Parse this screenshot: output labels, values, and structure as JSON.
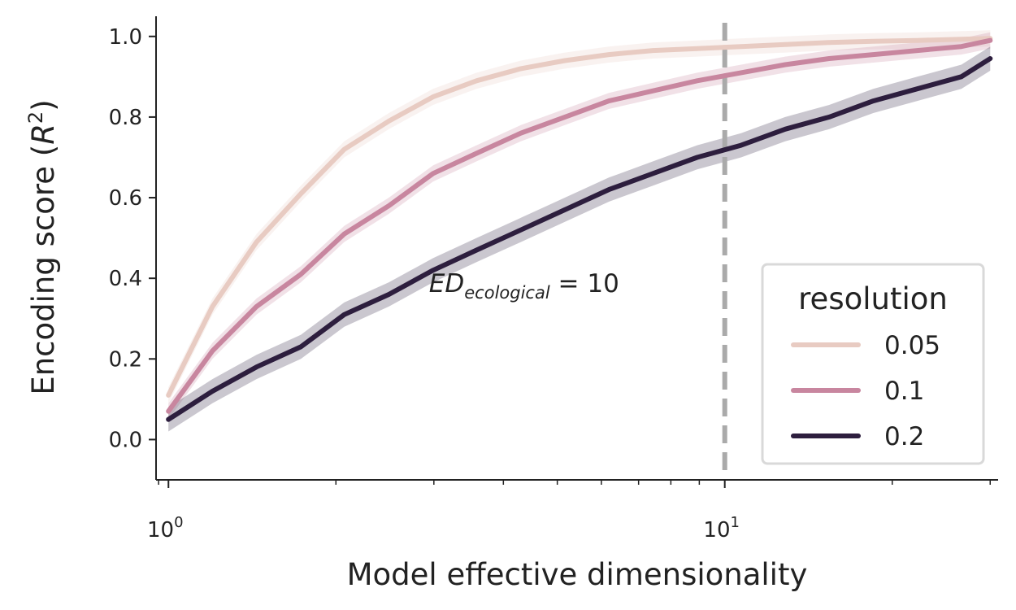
{
  "chart_data": {
    "type": "line",
    "xlabel": "Model effective dimensionality",
    "ylabel": "Encoding score (R²)",
    "ylabel_parts": {
      "main": "Encoding score (",
      "var": "R",
      "sup": "2",
      "close": ")"
    },
    "xscale": "log",
    "xlim": [
      0.95,
      31
    ],
    "ylim": [
      -0.1,
      1.05
    ],
    "x_ticks": [
      {
        "value": 1,
        "base": "10",
        "exp": "0"
      },
      {
        "value": 10,
        "base": "10",
        "exp": "1"
      }
    ],
    "y_ticks": [
      0.0,
      0.2,
      0.4,
      0.6,
      0.8,
      1.0
    ],
    "y_tick_labels": [
      "0.0",
      "0.2",
      "0.4",
      "0.6",
      "0.8",
      "1.0"
    ],
    "grid": false,
    "reference_line": {
      "x": 10,
      "style": "dashed",
      "color": "#aaaaaa"
    },
    "annotation": {
      "main": "ED",
      "sub": "ecological",
      "rest": " = 10",
      "x": 3.0,
      "y": 0.37
    },
    "legend": {
      "title": "resolution",
      "placement": "bottom-right"
    },
    "x": [
      1.0,
      1.2,
      1.44,
      1.73,
      2.07,
      2.49,
      2.99,
      3.58,
      4.3,
      5.16,
      6.19,
      7.43,
      8.92,
      10.7,
      12.84,
      15.41,
      18.49,
      22.19,
      26.63,
      30.0
    ],
    "series": [
      {
        "name": "0.05",
        "color": "#e8cbc2",
        "values": [
          0.11,
          0.33,
          0.49,
          0.61,
          0.72,
          0.79,
          0.85,
          0.89,
          0.92,
          0.94,
          0.955,
          0.965,
          0.97,
          0.975,
          0.98,
          0.985,
          0.988,
          0.99,
          0.993,
          0.995
        ],
        "band": 0.02
      },
      {
        "name": "0.1",
        "color": "#c8869f",
        "values": [
          0.07,
          0.22,
          0.33,
          0.41,
          0.51,
          0.58,
          0.66,
          0.71,
          0.76,
          0.8,
          0.84,
          0.865,
          0.89,
          0.91,
          0.93,
          0.945,
          0.955,
          0.965,
          0.975,
          0.99
        ],
        "band": 0.02
      },
      {
        "name": "0.2",
        "color": "#2d1e3e",
        "values": [
          0.05,
          0.12,
          0.18,
          0.23,
          0.31,
          0.36,
          0.42,
          0.47,
          0.52,
          0.57,
          0.62,
          0.66,
          0.7,
          0.73,
          0.77,
          0.8,
          0.84,
          0.87,
          0.9,
          0.945
        ],
        "band": 0.03
      }
    ]
  }
}
